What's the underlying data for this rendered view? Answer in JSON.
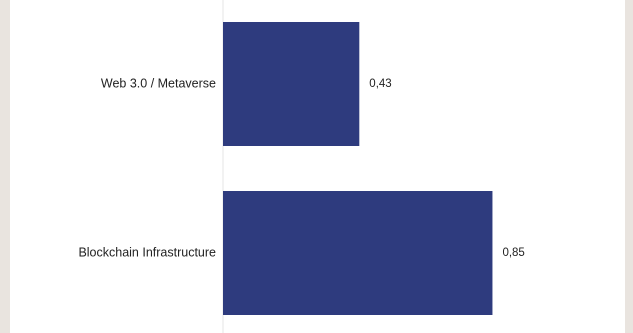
{
  "chart_data": {
    "type": "bar",
    "orientation": "horizontal",
    "title": "",
    "xlabel": "",
    "ylabel": "",
    "categories": [
      "Web 3.0 / Metaverse",
      "Blockchain Infrastructure"
    ],
    "values": [
      0.43,
      0.85
    ],
    "value_labels": [
      "0,43",
      "0,85"
    ],
    "xlim": [
      0,
      1
    ],
    "bar_color": "#2e3b7e",
    "grid": false,
    "legend": "none"
  },
  "colors": {
    "background": "#e9e4df",
    "panel": "#ffffff",
    "baseline": "#e6e6e6"
  }
}
